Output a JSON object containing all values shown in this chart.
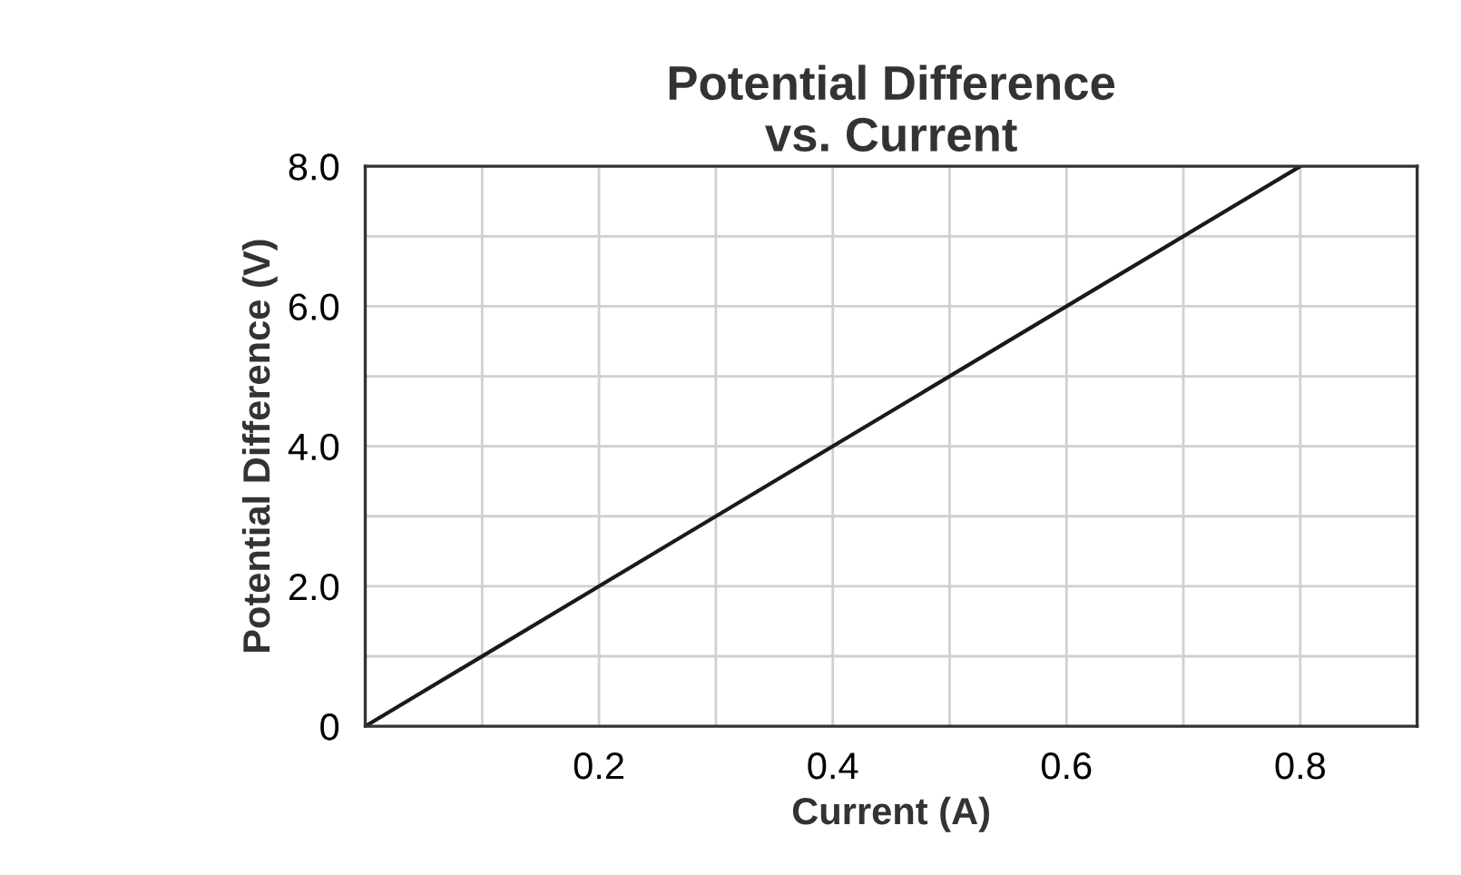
{
  "chart_data": {
    "type": "line",
    "title": "Potential Difference\nvs. Current",
    "xlabel": "Current (A)",
    "ylabel": "Potential Difference (V)",
    "x": [
      0,
      0.8
    ],
    "series": [
      {
        "color": "#1a1a1a",
        "values": [
          0,
          8.0
        ]
      }
    ],
    "xlim": [
      0,
      0.9
    ],
    "ylim": [
      0,
      8
    ],
    "xticks": [
      {
        "value": 0.1,
        "label": null
      },
      0.2,
      {
        "value": 0.3,
        "label": null
      },
      0.4,
      {
        "value": 0.5,
        "label": null
      },
      0.6,
      {
        "value": 0.7,
        "label": null
      },
      0.8
    ],
    "yticks": [
      {
        "value": 0,
        "label": "0"
      },
      {
        "value": 1,
        "label": null
      },
      {
        "value": 2,
        "label": "2.0"
      },
      {
        "value": 3,
        "label": null
      },
      {
        "value": 4,
        "label": "4.0"
      },
      {
        "value": 5,
        "label": null
      },
      {
        "value": 6,
        "label": "6.0"
      },
      {
        "value": 7,
        "label": null
      },
      {
        "value": 8,
        "label": "8.0"
      }
    ],
    "grid": true,
    "marker": "none",
    "line_style": "solid",
    "legend": false
  }
}
